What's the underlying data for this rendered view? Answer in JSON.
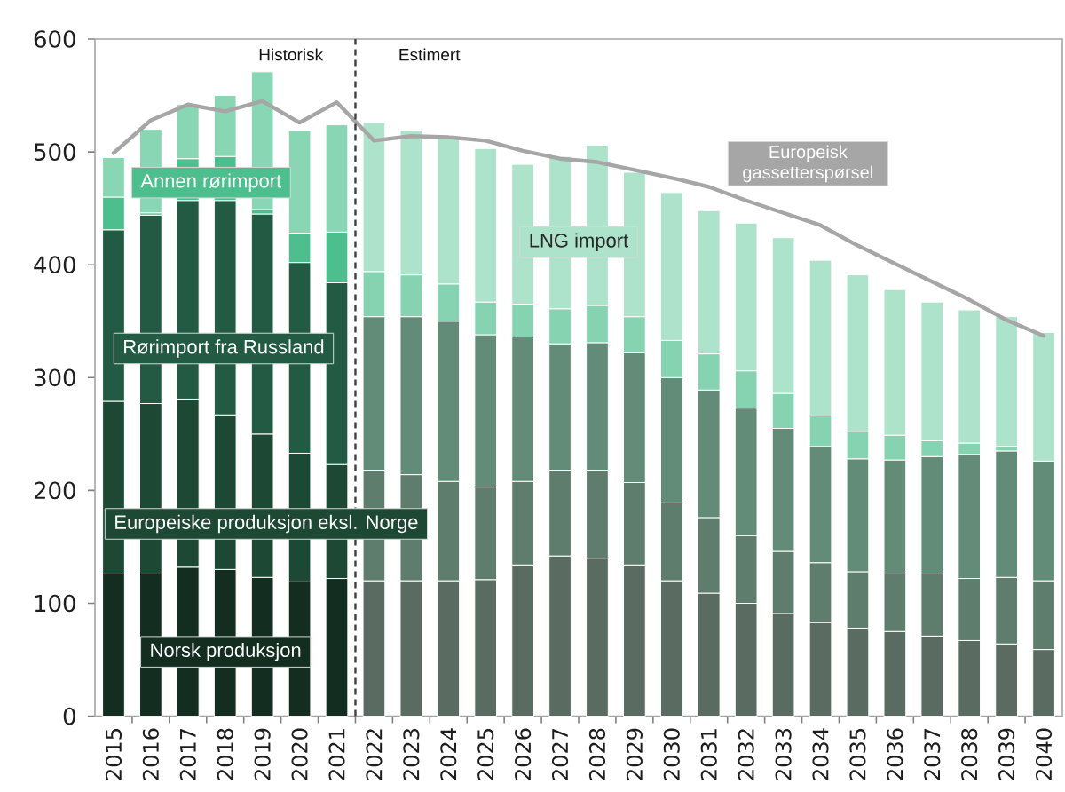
{
  "chart_data": {
    "type": "bar",
    "stacked": true,
    "x": [
      2015,
      2016,
      2017,
      2018,
      2019,
      2020,
      2021,
      2022,
      2023,
      2024,
      2025,
      2026,
      2027,
      2028,
      2029,
      2030,
      2031,
      2032,
      2033,
      2034,
      2035,
      2036,
      2037,
      2038,
      2039,
      2040
    ],
    "xlim": [
      2014.5,
      2040.5
    ],
    "xticks": [
      2015,
      2016,
      2017,
      2018,
      2019,
      2020,
      2021,
      2022,
      2023,
      2024,
      2025,
      2026,
      2027,
      2028,
      2029,
      2030,
      2031,
      2032,
      2033,
      2034,
      2035,
      2036,
      2037,
      2038,
      2039,
      2040
    ],
    "ylim": [
      0,
      600
    ],
    "yticks": [
      0,
      100,
      200,
      300,
      400,
      500,
      600
    ],
    "series": [
      {
        "name": "Norsk produksjon",
        "colors": [
          "#132d21",
          "#132d21",
          "#132d21",
          "#132d21",
          "#132d21",
          "#132d21",
          "#132d21",
          "#5a6c62",
          "#5a6c62",
          "#5a6c62",
          "#5a6c62",
          "#5a6c62",
          "#5a6c62",
          "#5a6c62",
          "#5a6c62",
          "#5a6c62",
          "#5a6c62",
          "#5a6c62",
          "#5a6c62",
          "#5a6c62",
          "#5a6c62",
          "#5a6c62",
          "#5a6c62",
          "#5a6c62",
          "#5a6c62",
          "#5a6c62"
        ],
        "values": [
          126,
          126,
          132,
          130,
          123,
          119,
          122,
          120,
          120,
          120,
          121,
          134,
          142,
          140,
          134,
          120,
          109,
          100,
          91,
          83,
          78,
          75,
          71,
          67,
          64,
          59
        ]
      },
      {
        "name": "Europeiske produksjon eksl. Norge",
        "colors": [
          "#1c4834",
          "#1c4834",
          "#1c4834",
          "#1c4834",
          "#1c4834",
          "#1c4834",
          "#1c4834",
          "#5f7d6d",
          "#5f7d6d",
          "#5f7d6d",
          "#5f7d6d",
          "#5f7d6d",
          "#5f7d6d",
          "#5f7d6d",
          "#5f7d6d",
          "#5f7d6d",
          "#5f7d6d",
          "#5f7d6d",
          "#5f7d6d",
          "#5f7d6d",
          "#5f7d6d",
          "#5f7d6d",
          "#5f7d6d",
          "#5f7d6d",
          "#5f7d6d",
          "#5f7d6d"
        ],
        "values": [
          153,
          151,
          149,
          137,
          127,
          114,
          101,
          98,
          94,
          88,
          82,
          74,
          76,
          78,
          73,
          69,
          67,
          60,
          55,
          53,
          50,
          51,
          55,
          55,
          59,
          61
        ]
      },
      {
        "name": "Rørimport fra Russland",
        "colors": [
          "#225a43",
          "#225a43",
          "#225a43",
          "#225a43",
          "#225a43",
          "#225a43",
          "#225a43",
          "#628c78",
          "#628c78",
          "#628c78",
          "#628c78",
          "#628c78",
          "#628c78",
          "#628c78",
          "#628c78",
          "#628c78",
          "#628c78",
          "#628c78",
          "#628c78",
          "#628c78",
          "#628c78",
          "#628c78",
          "#628c78",
          "#628c78",
          "#628c78",
          "#628c78"
        ],
        "values": [
          152,
          167,
          176,
          190,
          195,
          169,
          161,
          136,
          140,
          142,
          135,
          128,
          112,
          113,
          115,
          111,
          113,
          113,
          109,
          103,
          100,
          101,
          104,
          110,
          112,
          106
        ]
      },
      {
        "name": "Annen rørimport",
        "colors": [
          "#4dbf8e",
          "#4dbf8e",
          "#4dbf8e",
          "#4dbf8e",
          "#4dbf8e",
          "#4dbf8e",
          "#4dbf8e",
          "#86d3b1",
          "#86d3b1",
          "#86d3b1",
          "#86d3b1",
          "#86d3b1",
          "#86d3b1",
          "#86d3b1",
          "#86d3b1",
          "#86d3b1",
          "#86d3b1",
          "#86d3b1",
          "#86d3b1",
          "#86d3b1",
          "#86d3b1",
          "#86d3b1",
          "#86d3b1",
          "#86d3b1",
          "#86d3b1",
          "#86d3b1"
        ],
        "values": [
          29,
          2,
          37,
          39,
          4,
          26,
          45,
          40,
          37,
          33,
          29,
          29,
          31,
          33,
          32,
          33,
          32,
          33,
          31,
          27,
          24,
          22,
          14,
          10,
          4,
          null
        ]
      },
      {
        "name": "LNG import",
        "colors": [
          "#88d6b3",
          "#88d6b3",
          "#88d6b3",
          "#88d6b3",
          "#88d6b3",
          "#88d6b3",
          "#88d6b3",
          "#ade3cb",
          "#ade3cb",
          "#ade3cb",
          "#ade3cb",
          "#ade3cb",
          "#ade3cb",
          "#ade3cb",
          "#ade3cb",
          "#ade3cb",
          "#ade3cb",
          "#ade3cb",
          "#ade3cb",
          "#ade3cb",
          "#ade3cb",
          "#ade3cb",
          "#ade3cb",
          "#ade3cb",
          "#ade3cb",
          "#ade3cb"
        ],
        "values": [
          35,
          74,
          48,
          54,
          122,
          91,
          95,
          132,
          128,
          130,
          136,
          124,
          135,
          142,
          128,
          131,
          127,
          131,
          138,
          138,
          139,
          129,
          123,
          118,
          115,
          114
        ]
      },
      {
        "name": "Europeisk gassetterspørsel",
        "type": "line",
        "color": "#a6a6a6",
        "values": [
          499,
          528,
          542,
          536,
          545,
          526,
          544,
          510,
          514,
          513,
          510,
          501,
          494,
          491,
          484,
          477,
          469,
          457,
          446,
          435,
          417,
          401,
          385,
          369,
          351,
          337
        ]
      }
    ],
    "ref_lines": [
      {
        "axis": "x",
        "value": 2021.5,
        "color": "#404040",
        "line_style": "dashed"
      }
    ],
    "annotations": [
      "Historisk",
      "Estimert"
    ]
  }
}
